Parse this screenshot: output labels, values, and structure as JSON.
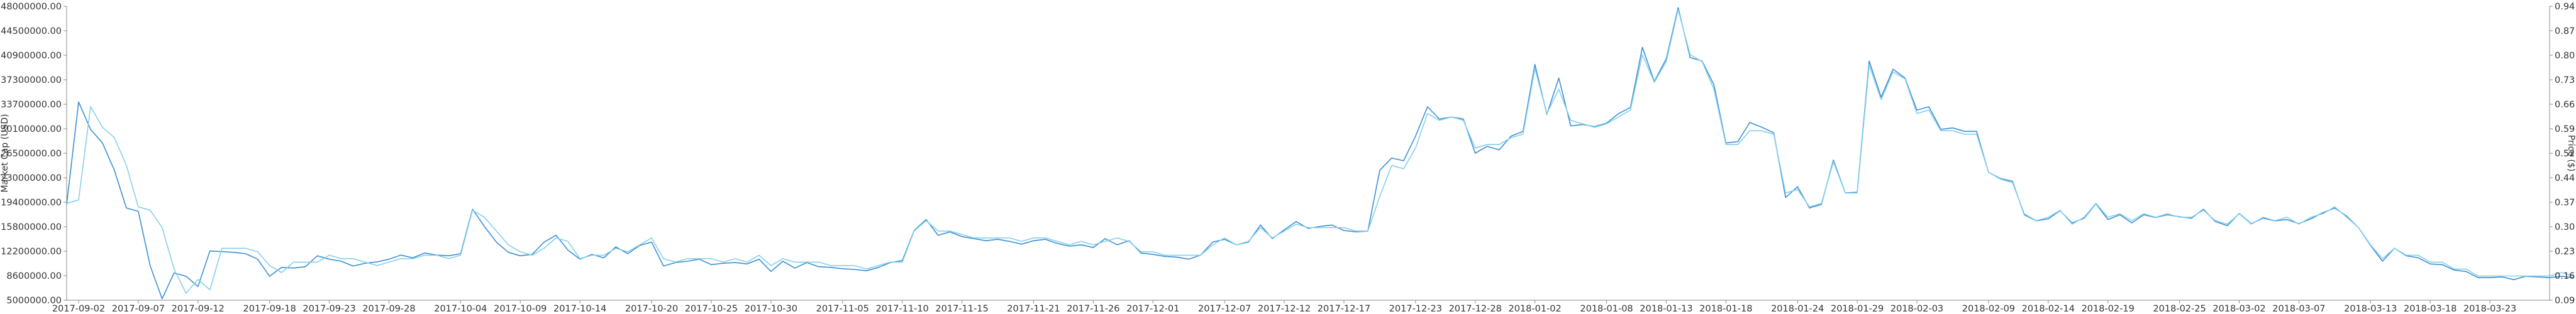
{
  "chart_data": {
    "type": "line",
    "title": "",
    "left_axis": {
      "label": "Market Cap (USD)",
      "ylim": [
        5000000,
        48000000
      ],
      "ticks": [
        "48000000.00",
        "44500000.00",
        "40900000.00",
        "37300000.00",
        "33700000.00",
        "30100000.00",
        "26500000.00",
        "23000000.00",
        "19400000.00",
        "15800000.00",
        "12200000.00",
        "8600000.00",
        "5000000.00"
      ]
    },
    "right_axis": {
      "label": "Price ($)",
      "ylim": [
        0.09,
        0.94
      ],
      "ticks": [
        "0.94",
        "0.87",
        "0.80",
        "0.73",
        "0.66",
        "0.59",
        "0.52",
        "0.44",
        "0.37",
        "0.30",
        "0.23",
        "0.16",
        "0.09"
      ]
    },
    "x_ticks": [
      "2017-09-02",
      "2017-09-07",
      "2017-09-12",
      "2017-09-18",
      "2017-09-23",
      "2017-09-28",
      "2017-10-04",
      "2017-10-09",
      "2017-10-14",
      "2017-10-20",
      "2017-10-25",
      "2017-10-30",
      "2017-11-05",
      "2017-11-10",
      "2017-11-15",
      "2017-11-21",
      "2017-11-26",
      "2017-12-01",
      "2017-12-07",
      "2017-12-12",
      "2017-12-17",
      "2017-12-23",
      "2017-12-28",
      "2018-01-02",
      "2018-01-08",
      "2018-01-13",
      "2018-01-18",
      "2018-01-24",
      "2018-01-29",
      "2018-02-03",
      "2018-02-09",
      "2018-02-14",
      "2018-02-19",
      "2018-02-25",
      "2018-03-02",
      "2018-03-07",
      "2018-03-13",
      "2018-03-18",
      "2018-03-23"
    ],
    "x_range": [
      "2017-09-01",
      "2018-03-28"
    ],
    "grid": false,
    "series": [
      {
        "name": "Market Cap (USD)",
        "color": "#3a8fd6",
        "axis": "left",
        "values": [
          19000000,
          34000000,
          30000000,
          28000000,
          24000000,
          18500000,
          18000000,
          10000000,
          5200000,
          9000000,
          8500000,
          7000000,
          12200000,
          12100000,
          12000000,
          11800000,
          11000000,
          8500000,
          9800000,
          9700000,
          9900000,
          11500000,
          11000000,
          10700000,
          10000000,
          10400000,
          10600000,
          11000000,
          11600000,
          11200000,
          11900000,
          11600000,
          11500000,
          11800000,
          18300000,
          15800000,
          13500000,
          12000000,
          11500000,
          11700000,
          13500000,
          14500000,
          12300000,
          11000000,
          11700000,
          11200000,
          12800000,
          11800000,
          13000000,
          13500000,
          10000000,
          10500000,
          10700000,
          11000000,
          10200000,
          10400000,
          10500000,
          10300000,
          11000000,
          9200000,
          10700000,
          9700000,
          10500000,
          9900000,
          9800000,
          9600000,
          9500000,
          9300000,
          9800000,
          10500000,
          10800000,
          15200000,
          16800000,
          14500000,
          15000000,
          14300000,
          14000000,
          13700000,
          13900000,
          13600000,
          13200000,
          13700000,
          13900000,
          13300000,
          12900000,
          13100000,
          12700000,
          14000000,
          13100000,
          13700000,
          11900000,
          11700000,
          11400000,
          11300000,
          11000000,
          11600000,
          13500000,
          13900000,
          13100000,
          13500000,
          16000000,
          14000000,
          15300000,
          16500000,
          15500000,
          15800000,
          16000000,
          15200000,
          15000000,
          15100000,
          24000000,
          25800000,
          25400000,
          29000000,
          33300000,
          31500000,
          31800000,
          31500000,
          26500000,
          27500000,
          27000000,
          29000000,
          29700000,
          39500000,
          32200000,
          37500000,
          30500000,
          30700000,
          30400000,
          30900000,
          32300000,
          33200000,
          42000000,
          37000000,
          40300000,
          47800000,
          40500000,
          40000000,
          36500000,
          28000000,
          28200000,
          31000000,
          30300000,
          29500000,
          20000000,
          21600000,
          18500000,
          19000000,
          25500000,
          20700000,
          20800000,
          40000000,
          34700000,
          38800000,
          37500000,
          32800000,
          33300000,
          30000000,
          30200000,
          29700000,
          29700000,
          23700000,
          22800000,
          22400000,
          17500000,
          16600000,
          16900000,
          18100000,
          16300000,
          17000000,
          19100000,
          16800000,
          17500000,
          16300000,
          17500000,
          17100000,
          17500000,
          17200000,
          17000000,
          18300000,
          16500000,
          15900000,
          17700000,
          16200000,
          17000000,
          16600000,
          16800000,
          16200000,
          16900000,
          17800000,
          18500000,
          17300000,
          15600000,
          13000000,
          10700000,
          12600000,
          11500000,
          11200000,
          10300000,
          10200000,
          9400000,
          9200000,
          8300000,
          8300000,
          8400000,
          8000000,
          8500000,
          8400000,
          8300000,
          8500000,
          8300000
        ]
      },
      {
        "name": "Price ($)",
        "color": "#86cfea",
        "axis": "right",
        "values": [
          0.37,
          0.38,
          0.65,
          0.59,
          0.56,
          0.48,
          0.36,
          0.35,
          0.3,
          0.18,
          0.11,
          0.15,
          0.12,
          0.24,
          0.24,
          0.24,
          0.23,
          0.19,
          0.17,
          0.2,
          0.2,
          0.2,
          0.22,
          0.21,
          0.21,
          0.2,
          0.19,
          0.2,
          0.21,
          0.21,
          0.22,
          0.22,
          0.21,
          0.22,
          0.35,
          0.33,
          0.29,
          0.25,
          0.23,
          0.22,
          0.24,
          0.27,
          0.26,
          0.21,
          0.22,
          0.22,
          0.24,
          0.23,
          0.25,
          0.27,
          0.21,
          0.2,
          0.21,
          0.21,
          0.21,
          0.2,
          0.21,
          0.2,
          0.22,
          0.19,
          0.21,
          0.2,
          0.2,
          0.2,
          0.19,
          0.19,
          0.19,
          0.18,
          0.19,
          0.2,
          0.2,
          0.29,
          0.32,
          0.29,
          0.29,
          0.28,
          0.27,
          0.27,
          0.27,
          0.27,
          0.26,
          0.27,
          0.27,
          0.26,
          0.25,
          0.26,
          0.25,
          0.26,
          0.27,
          0.26,
          0.23,
          0.23,
          0.22,
          0.22,
          0.22,
          0.22,
          0.25,
          0.27,
          0.25,
          0.26,
          0.3,
          0.27,
          0.29,
          0.31,
          0.3,
          0.3,
          0.3,
          0.3,
          0.29,
          0.29,
          0.39,
          0.48,
          0.47,
          0.53,
          0.63,
          0.61,
          0.62,
          0.61,
          0.53,
          0.54,
          0.54,
          0.56,
          0.57,
          0.76,
          0.63,
          0.7,
          0.61,
          0.6,
          0.59,
          0.6,
          0.62,
          0.64,
          0.8,
          0.72,
          0.78,
          0.93,
          0.8,
          0.78,
          0.7,
          0.54,
          0.54,
          0.58,
          0.58,
          0.57,
          0.4,
          0.41,
          0.36,
          0.37,
          0.49,
          0.4,
          0.4,
          0.77,
          0.67,
          0.75,
          0.73,
          0.63,
          0.64,
          0.58,
          0.58,
          0.57,
          0.57,
          0.46,
          0.44,
          0.43,
          0.34,
          0.32,
          0.33,
          0.35,
          0.31,
          0.33,
          0.37,
          0.33,
          0.34,
          0.32,
          0.34,
          0.33,
          0.34,
          0.33,
          0.33,
          0.35,
          0.32,
          0.31,
          0.34,
          0.31,
          0.33,
          0.32,
          0.33,
          0.31,
          0.33,
          0.34,
          0.36,
          0.33,
          0.3,
          0.25,
          0.21,
          0.24,
          0.22,
          0.22,
          0.2,
          0.2,
          0.18,
          0.18,
          0.16,
          0.16,
          0.16,
          0.16,
          0.16,
          0.16,
          0.16,
          0.17,
          0.16
        ]
      }
    ]
  }
}
